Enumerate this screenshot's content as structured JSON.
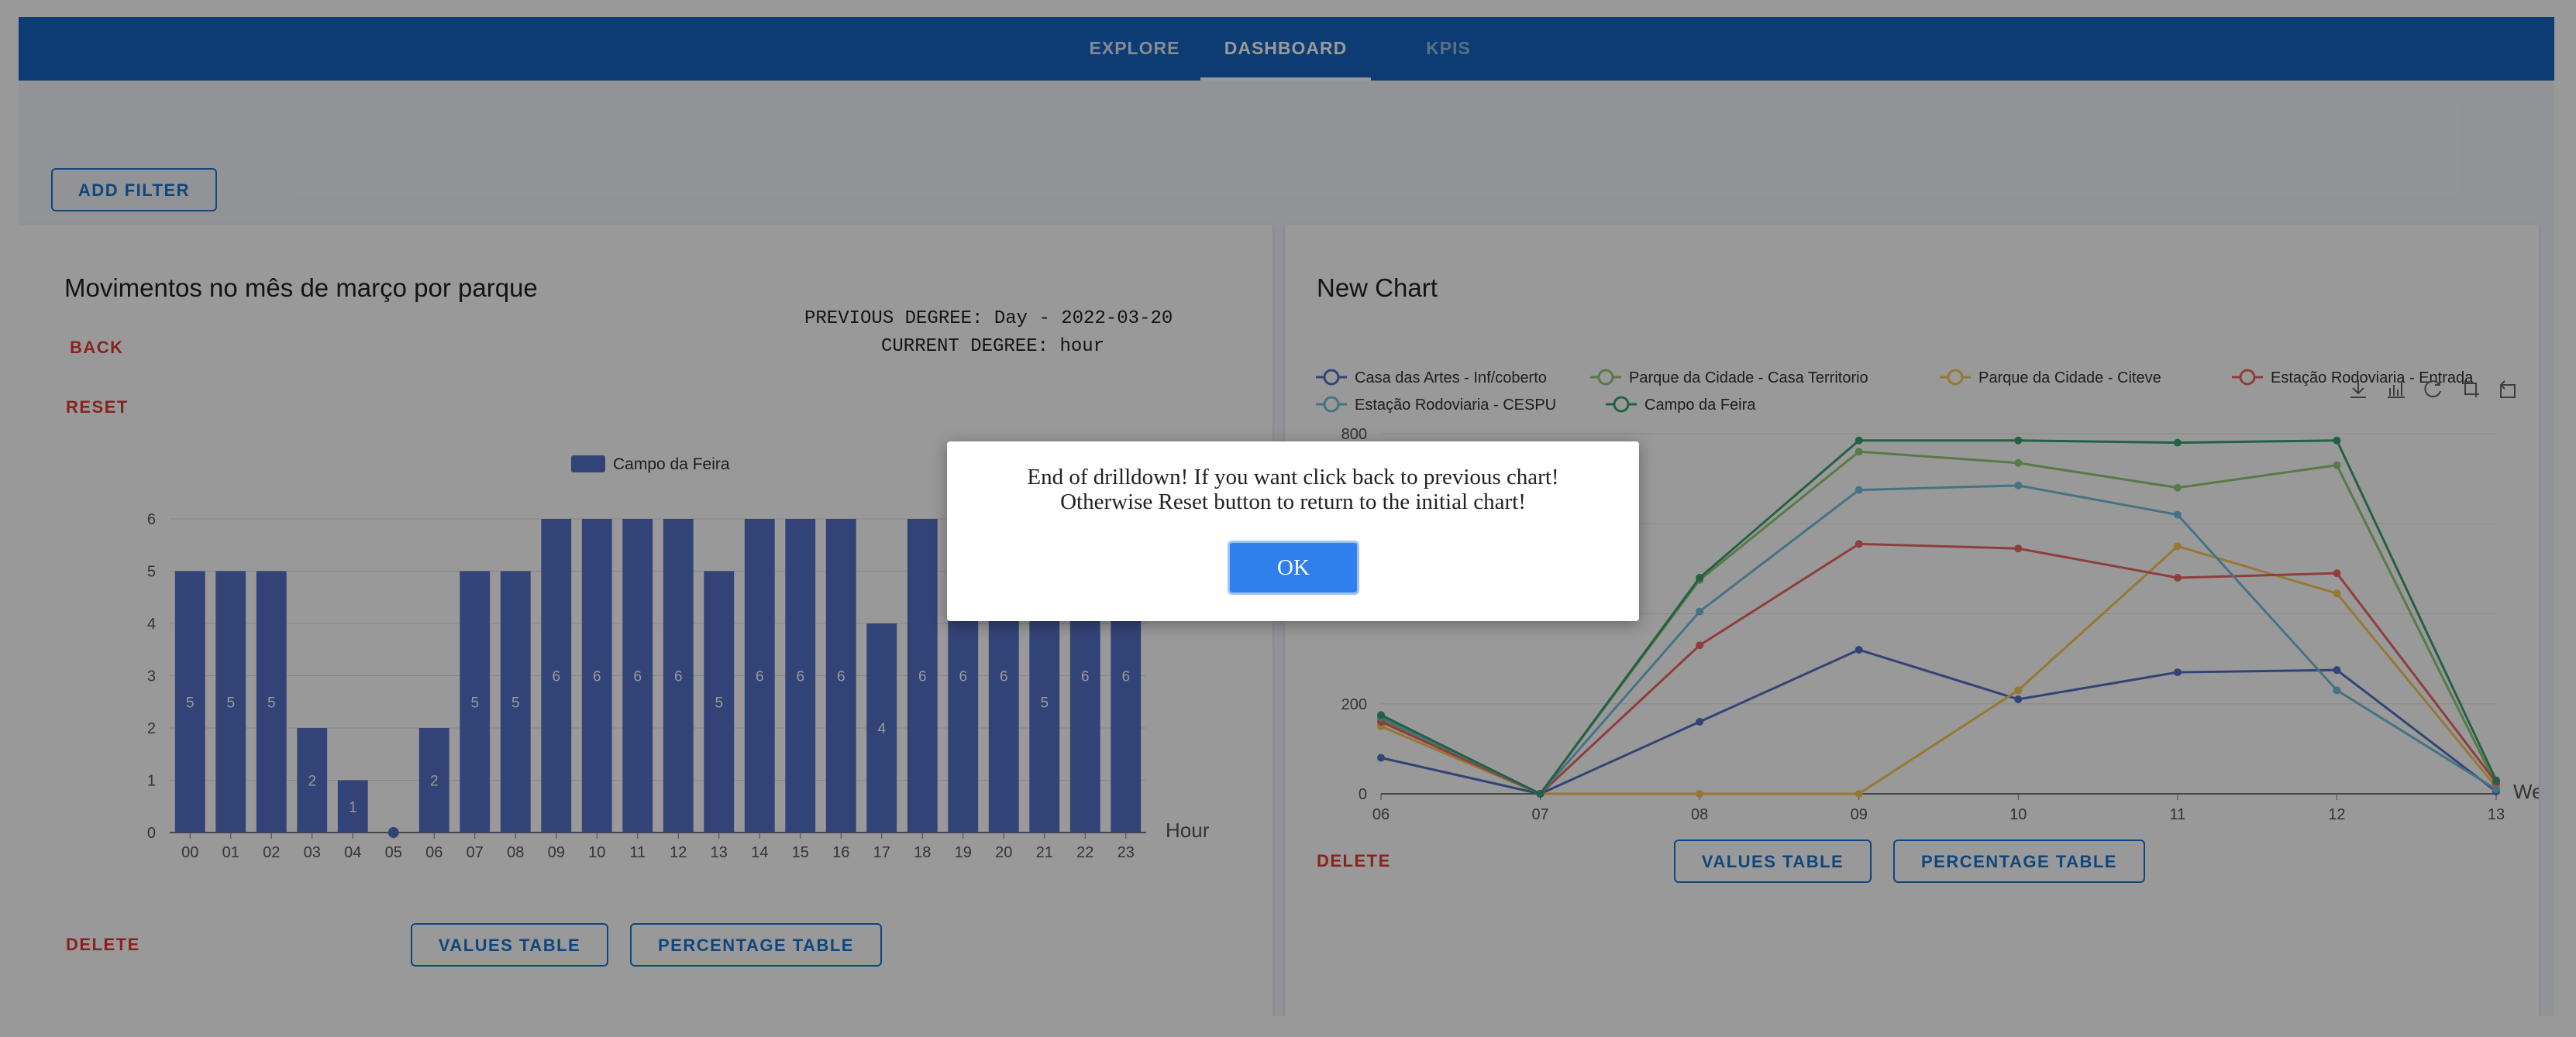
{
  "nav": {
    "tabs": [
      {
        "label": "EXPLORE"
      },
      {
        "label": "DASHBOARD"
      },
      {
        "label": "KPIS"
      }
    ]
  },
  "filters": {
    "add_filter_label": "ADD FILTER"
  },
  "left_card": {
    "title": "Movimentos no mês de março por parque",
    "previous_degree": "PREVIOUS DEGREE: Day - 2022-03-20",
    "current_degree": "CURRENT DEGREE: hour",
    "back_label": "BACK",
    "reset_label": "RESET",
    "delete_label": "DELETE",
    "values_table_label": "VALUES TABLE",
    "percentage_table_label": "PERCENTAGE TABLE"
  },
  "right_card": {
    "title": "New Chart",
    "delete_label": "DELETE",
    "values_table_label": "VALUES TABLE",
    "percentage_table_label": "PERCENTAGE TABLE",
    "toolbox_icons": [
      "download-icon",
      "bar-chart-icon",
      "refresh-icon",
      "crop-icon",
      "restore-icon"
    ]
  },
  "modal": {
    "line1": "End of drilldown! If you want click back to previous chart!",
    "line2": "Otherwise Reset button to return to the initial chart!",
    "ok_label": "OK"
  },
  "colors": {
    "nav": "#1565c0",
    "bar": "#5470c6",
    "delete": "#e53935",
    "primary": "#1976d2"
  },
  "chart_data": [
    {
      "type": "bar",
      "title": "",
      "xlabel": "Hour",
      "ylabel": "",
      "legend": [
        "Campo da Feira"
      ],
      "legend_position": "top-center",
      "ylim": [
        0,
        6
      ],
      "yticks": [
        0,
        1,
        2,
        3,
        4,
        5,
        6
      ],
      "categories": [
        "00",
        "01",
        "02",
        "03",
        "04",
        "05",
        "06",
        "07",
        "08",
        "09",
        "10",
        "11",
        "12",
        "13",
        "14",
        "15",
        "16",
        "17",
        "18",
        "19",
        "20",
        "21",
        "22",
        "23"
      ],
      "series": [
        {
          "name": "Campo da Feira",
          "color": "#5470c6",
          "values": [
            5,
            5,
            5,
            2,
            1,
            0,
            2,
            5,
            5,
            6,
            6,
            6,
            6,
            5,
            6,
            6,
            6,
            4,
            6,
            6,
            6,
            5,
            6,
            6
          ]
        }
      ],
      "grid": true
    },
    {
      "type": "line",
      "title": "",
      "xlabel": "We",
      "ylabel": "",
      "legend_position": "top",
      "ylim": [
        0,
        800
      ],
      "yticks": [
        0,
        200,
        800
      ],
      "categories": [
        "06",
        "07",
        "08",
        "09",
        "10",
        "11",
        "12",
        "13"
      ],
      "series": [
        {
          "name": "Casa das Artes -  Inf/coberto",
          "color": "#5470c6",
          "values": [
            80,
            0,
            160,
            320,
            210,
            270,
            275,
            5
          ]
        },
        {
          "name": "Parque da Cidade - Casa Territorio",
          "color": "#91cc75",
          "values": [
            165,
            0,
            475,
            760,
            735,
            680,
            730,
            20
          ]
        },
        {
          "name": "Parque da Cidade - Citeve",
          "color": "#fac858",
          "values": [
            150,
            0,
            0,
            0,
            230,
            550,
            445,
            15
          ]
        },
        {
          "name": "Estação Rodoviaria - Entrada",
          "color": "#ee6666",
          "values": [
            160,
            0,
            330,
            555,
            545,
            480,
            490,
            25
          ]
        },
        {
          "name": "Estação Rodoviaria - CESPU",
          "color": "#73c0de",
          "values": [
            170,
            0,
            405,
            675,
            685,
            620,
            230,
            10
          ]
        },
        {
          "name": "Campo da Feira",
          "color": "#3ba272",
          "values": [
            175,
            0,
            480,
            785,
            785,
            780,
            785,
            30
          ]
        }
      ],
      "grid": true
    }
  ]
}
